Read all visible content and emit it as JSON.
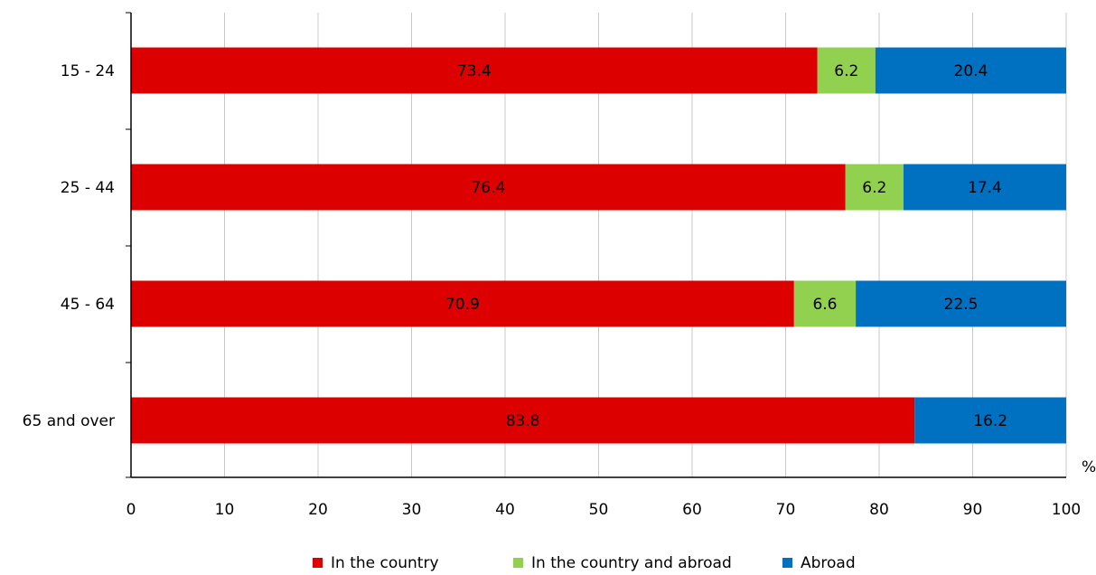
{
  "chart_data": {
    "type": "bar",
    "orientation": "horizontal",
    "stacked": true,
    "categories": [
      "15 - 24",
      "25 - 44",
      "45 - 64",
      "65 and over"
    ],
    "series": [
      {
        "name": "In the country",
        "values": [
          73.4,
          76.4,
          70.9,
          83.8
        ],
        "color": "#dc0000"
      },
      {
        "name": "In the country and abroad",
        "values": [
          6.2,
          6.2,
          6.6,
          0
        ],
        "color": "#92d050"
      },
      {
        "name": "Abroad",
        "values": [
          20.4,
          17.4,
          22.5,
          16.2
        ],
        "color": "#0070c0"
      }
    ],
    "xlim": [
      0,
      100
    ],
    "xticks": [
      0,
      10,
      20,
      30,
      40,
      50,
      60,
      70,
      80,
      90,
      100
    ],
    "unit_label": "%",
    "grid": "vertical",
    "legend_position": "bottom"
  }
}
